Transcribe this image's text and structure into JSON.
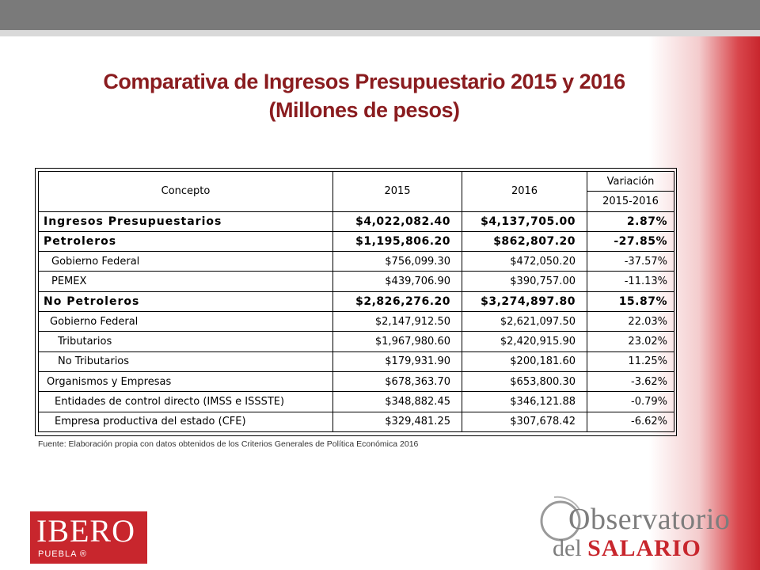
{
  "title": {
    "line1": "Comparativa de Ingresos Presupuestario 2015 y 2016",
    "line2": "(Millones de pesos)"
  },
  "table": {
    "headers": {
      "concepto": "Concepto",
      "y2015": "2015",
      "y2016": "2016",
      "variacion": "Variación",
      "variacion_sub": "2015-2016"
    },
    "rows": [
      {
        "label": "Ingresos Presupuestarios",
        "v2015": "$4,022,082.40",
        "v2016": "$4,137,705.00",
        "var": "2.87%"
      },
      {
        "label": "Petroleros",
        "v2015": "$1,195,806.20",
        "v2016": "$862,807.20",
        "var": "-27.85%"
      },
      {
        "label": "Gobierno Federal",
        "v2015": "$756,099.30",
        "v2016": "$472,050.20",
        "var": "-37.57%"
      },
      {
        "label": "PEMEX",
        "v2015": "$439,706.90",
        "v2016": "$390,757.00",
        "var": "-11.13%"
      },
      {
        "label": "No Petroleros",
        "v2015": "$2,826,276.20",
        "v2016": "$3,274,897.80",
        "var": "15.87%"
      },
      {
        "label": "Gobierno Federal",
        "v2015": "$2,147,912.50",
        "v2016": "$2,621,097.50",
        "var": "22.03%"
      },
      {
        "label": "Tributarios",
        "v2015": "$1,967,980.60",
        "v2016": "$2,420,915.90",
        "var": "23.02%"
      },
      {
        "label": "No Tributarios",
        "v2015": "$179,931.90",
        "v2016": "$200,181.60",
        "var": "11.25%"
      },
      {
        "label": "Organismos y Empresas",
        "v2015": "$678,363.70",
        "v2016": "$653,800.30",
        "var": "-3.62%"
      },
      {
        "label": "Entidades de control directo (IMSS e ISSSTE)",
        "v2015": "$348,882.45",
        "v2016": "$346,121.88",
        "var": "-0.79%"
      },
      {
        "label": "Empresa productiva del estado (CFE)",
        "v2015": "$329,481.25",
        "v2016": "$307,678.42",
        "var": "-6.62%"
      }
    ]
  },
  "source": "Fuente: Elaboración propia con datos obtenidos de los Criterios Generales de Política Económica 2016",
  "logos": {
    "ibero_name": "IBERO",
    "ibero_sub": "PUEBLA ®",
    "obs_line1": "Observatorio",
    "obs_line2a": "del ",
    "obs_line2b": "SALARIO"
  },
  "colors": {
    "title": "#8a1c1f",
    "brand_red": "#c8262d",
    "top_bar": "#7a7a7a"
  }
}
